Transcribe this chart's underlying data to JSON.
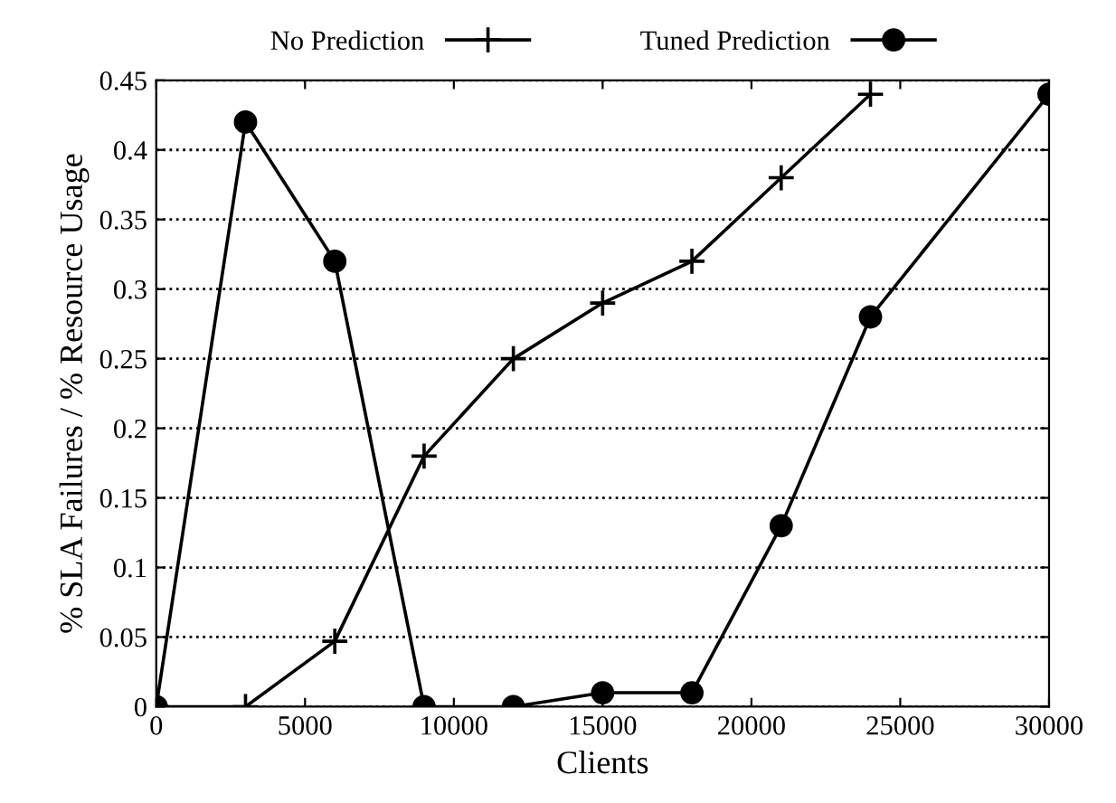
{
  "chart_data": {
    "type": "line",
    "xlabel": "Clients",
    "ylabel": "% SLA Failures / % Resource Usage",
    "x": [
      0,
      3000,
      6000,
      9000,
      12000,
      15000,
      18000,
      21000,
      24000
    ],
    "series": [
      {
        "name": "No Prediction",
        "color": "#000000",
        "marker": "cross",
        "values": [
          0,
          0,
          0.047,
          0.18,
          0.25,
          0.29,
          0.32,
          0.38,
          0.44
        ]
      },
      {
        "name": "Tuned Prediction",
        "color": "#000000",
        "marker": "circle",
        "x": [
          0,
          3000,
          6000,
          9000,
          12000,
          15000,
          18000,
          21000,
          24000,
          30000
        ],
        "values": [
          0,
          0.42,
          0.32,
          0,
          0,
          0.01,
          0.01,
          0.13,
          0.28,
          0.44
        ]
      }
    ],
    "xlim": [
      0,
      30000
    ],
    "ylim": [
      0,
      0.45
    ],
    "xticks": [
      0,
      5000,
      10000,
      15000,
      20000,
      25000,
      30000
    ],
    "yticks": [
      0,
      0.05,
      0.1,
      0.15,
      0.2,
      0.25,
      0.3,
      0.35,
      0.4,
      0.45
    ],
    "grid": "y",
    "legend": "top"
  }
}
